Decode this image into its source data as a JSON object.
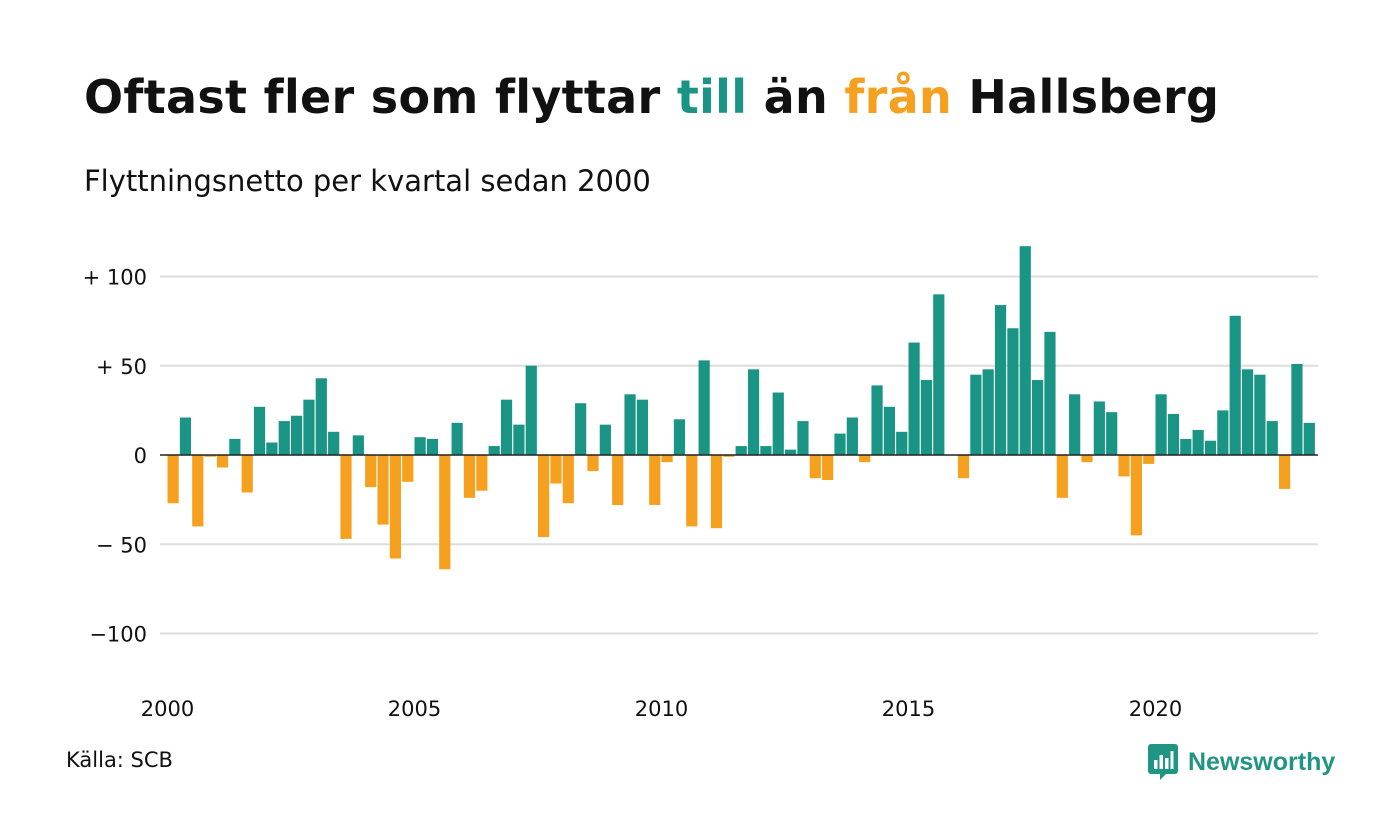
{
  "title": {
    "part1": "Oftast fler som flyttar ",
    "part2": "till",
    "part3": " än ",
    "part4": "från",
    "part5": " Hallsberg"
  },
  "subtitle": "Flyttningsnetto per kvartal sedan 2000",
  "source": "Källa: SCB",
  "brand": "Newsworthy",
  "colors": {
    "positive": "#1a9585",
    "negative": "#f5a01e",
    "grid": "#dddddd",
    "zero_line": "#222222",
    "text": "#111111"
  },
  "chart_data": {
    "type": "bar",
    "x_start_year": 2000,
    "quarters_per_year": 4,
    "ylim": [
      -125,
      125
    ],
    "y_ticks": [
      100,
      50,
      0,
      -50,
      -100
    ],
    "y_tick_labels": [
      "+ 100",
      "+  50",
      "0",
      "− 50",
      "−100"
    ],
    "x_ticks": [
      2000,
      2005,
      2010,
      2015,
      2020
    ],
    "x_tick_labels": [
      "2000",
      "2005",
      "2010",
      "2015",
      "2020"
    ],
    "grid": true,
    "values": [
      -27,
      21,
      -40,
      -1,
      -7,
      9,
      -21,
      27,
      7,
      19,
      22,
      31,
      43,
      13,
      -47,
      11,
      -18,
      -39,
      -58,
      -15,
      10,
      9,
      -64,
      18,
      -24,
      -20,
      5,
      31,
      17,
      50,
      -46,
      -16,
      -27,
      29,
      -9,
      17,
      -28,
      34,
      31,
      -28,
      -4,
      20,
      -40,
      53,
      -41,
      -1,
      5,
      48,
      5,
      35,
      3,
      19,
      -13,
      -14,
      12,
      21,
      -4,
      39,
      27,
      13,
      63,
      42,
      90,
      0,
      -13,
      45,
      48,
      84,
      71,
      117,
      42,
      69,
      -24,
      34,
      -4,
      30,
      24,
      -12,
      -45,
      -5,
      34,
      23,
      9,
      14,
      8,
      25,
      78,
      48,
      45,
      19,
      -19,
      51,
      18
    ]
  }
}
